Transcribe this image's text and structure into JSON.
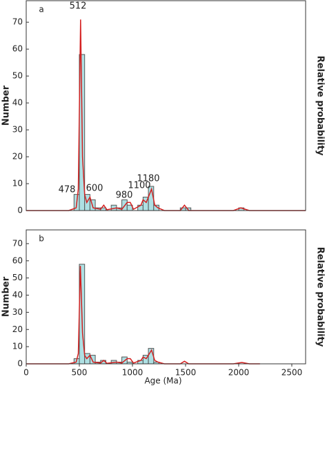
{
  "chart_data": [
    {
      "type": "histogram",
      "panel_label": "a",
      "ylabel": "Number",
      "y2label": "Relative probability",
      "ylim": [
        0,
        78
      ],
      "yticks": [
        0,
        10,
        20,
        30,
        40,
        50,
        60,
        70
      ],
      "xlim": [
        0,
        2630
      ],
      "bar_color": "#aee0e3",
      "bins": [
        450,
        500,
        550,
        600,
        650,
        700,
        750,
        800,
        850,
        900,
        950,
        1000,
        1050,
        1100,
        1150,
        1200,
        1250,
        1300,
        1350,
        1400,
        1450,
        1500,
        1550,
        1600,
        1650,
        1700,
        1750,
        1800,
        1850,
        1900,
        1950,
        2000,
        2050,
        2100
      ],
      "counts": [
        6,
        58,
        6,
        4,
        1,
        1,
        0,
        2,
        1,
        4,
        2,
        0,
        2,
        5,
        9,
        2,
        0,
        0,
        0,
        0,
        1,
        1,
        0,
        0,
        0,
        0,
        0,
        0,
        0,
        0,
        0,
        1,
        0
      ],
      "curve": {
        "color": "#d42020",
        "x": [
          0,
          400,
          470,
          490,
          512,
          530,
          550,
          570,
          600,
          630,
          700,
          730,
          760,
          850,
          900,
          950,
          980,
          1010,
          1080,
          1100,
          1130,
          1180,
          1210,
          1240,
          1300,
          1450,
          1490,
          1530,
          1950,
          2020,
          2100,
          2630
        ],
        "values": [
          0,
          0,
          1,
          8,
          71,
          20,
          6,
          3,
          5,
          1,
          0.5,
          2,
          0.3,
          1,
          0.5,
          3,
          3,
          0.5,
          2,
          4,
          3,
          8,
          2,
          1,
          0,
          0,
          2,
          0,
          0,
          1,
          0,
          0
        ]
      },
      "annotations": [
        "512",
        "478",
        "600",
        "980",
        "1100",
        "1180"
      ]
    },
    {
      "type": "histogram",
      "panel_label": "b",
      "ylabel": "Number",
      "y2label": "Relative probability",
      "xlabel": "Age (Ma)",
      "ylim": [
        0,
        78
      ],
      "yticks": [
        0,
        10,
        20,
        30,
        40,
        50,
        60,
        70
      ],
      "xlim": [
        0,
        2630
      ],
      "xticks": [
        0,
        500,
        1000,
        1500,
        2000,
        2500
      ],
      "bar_color": "#aee0e3",
      "bins": [
        450,
        500,
        550,
        600,
        650,
        700,
        750,
        800,
        850,
        900,
        950,
        1000,
        1050,
        1100,
        1150,
        1200,
        1250
      ],
      "counts": [
        3,
        58,
        6,
        5,
        1,
        2,
        0,
        2,
        1,
        4,
        1,
        0,
        2,
        5,
        9,
        1
      ],
      "curve": {
        "color": "#d42020",
        "x": [
          0,
          400,
          470,
          490,
          510,
          530,
          550,
          570,
          600,
          630,
          700,
          730,
          760,
          850,
          900,
          950,
          980,
          1010,
          1080,
          1100,
          1130,
          1180,
          1210,
          1240,
          1300,
          1450,
          1490,
          1530,
          1950,
          2030,
          2100,
          2200
        ],
        "values": [
          0,
          0,
          1,
          6,
          57,
          18,
          5,
          3,
          5,
          1,
          0.5,
          2,
          0.3,
          1,
          0.5,
          3,
          3,
          0.5,
          2,
          4,
          3,
          8,
          2,
          1,
          0,
          0,
          1.5,
          0,
          0,
          0.8,
          0,
          0
        ]
      }
    }
  ]
}
